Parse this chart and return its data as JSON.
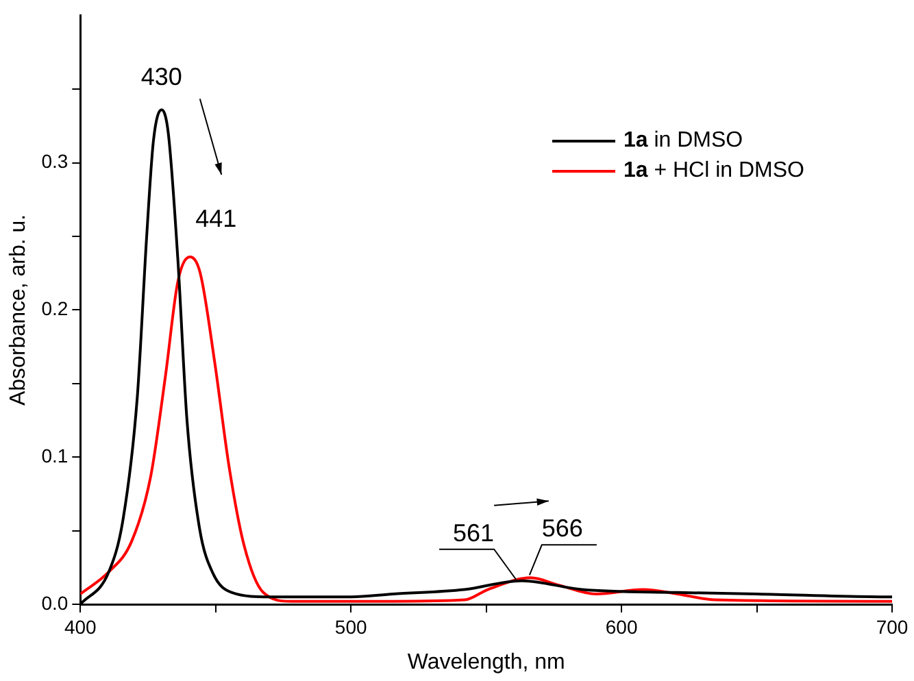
{
  "chart_data": {
    "type": "line",
    "xlabel": "Wavelength, nm",
    "ylabel": "Absorbance, arb. u.",
    "xlim": [
      400,
      700
    ],
    "xticks": [
      400,
      {
        "value": 450,
        "label": null
      },
      500,
      {
        "value": 550,
        "label": null
      },
      600,
      {
        "value": 650,
        "label": null
      },
      700
    ],
    "ylim": [
      0,
      0.4
    ],
    "yticks": [
      {
        "value": 0,
        "label": "0.0"
      },
      {
        "value": 0.05,
        "label": null
      },
      0.1,
      {
        "value": 0.15,
        "label": null
      },
      0.2,
      {
        "value": 0.25,
        "label": null
      },
      0.3,
      {
        "value": 0.35,
        "label": null
      }
    ],
    "grid": false,
    "legend": "top right",
    "marker": "none",
    "line_style": "solid",
    "series": [
      {
        "name": "1a in DMSO",
        "color": "#000000",
        "x": [
          400,
          410.5,
          415.8,
          421,
          424.5,
          427,
          430,
          432.5,
          436,
          439.4,
          444,
          449,
          456,
          470,
          500,
          515.6,
          541.9,
          562.9,
          585.5,
          620.7,
          650,
          699,
          700
        ],
        "values": [
          0,
          0.022,
          0.058,
          0.14,
          0.25,
          0.315,
          0.336,
          0.32,
          0.235,
          0.125,
          0.052,
          0.021,
          0.008,
          0.005,
          0.005,
          0.007,
          0.01,
          0.016,
          0.01,
          0.008,
          0.007,
          0.005,
          0.005
        ]
      },
      {
        "name": "1a + HCl in DMSO",
        "color": "#ff0000",
        "x": [
          400,
          410.5,
          419,
          426,
          431.5,
          436,
          440.5,
          444.3,
          449.6,
          455,
          460.5,
          467.6,
          478,
          500,
          515.6,
          542,
          550.6,
          566.4,
          576.8,
          590.6,
          608,
          620.7,
          634.7,
          699,
          700
        ],
        "values": [
          0.007,
          0.022,
          0.043,
          0.087,
          0.156,
          0.219,
          0.236,
          0.225,
          0.165,
          0.093,
          0.04,
          0.008,
          0.002,
          0.002,
          0.002,
          0.003,
          0.01,
          0.018,
          0.013,
          0.007,
          0.01,
          0.007,
          0.003,
          0.002,
          0.002
        ]
      }
    ],
    "annotations": [
      {
        "text": "430",
        "x": 430,
        "y": 0.336
      },
      {
        "text": "441",
        "x": 441,
        "y": 0.236
      },
      {
        "text": "561",
        "x": 561,
        "y": 0.015
      },
      {
        "text": "566",
        "x": 566,
        "y": 0.018
      }
    ]
  }
}
